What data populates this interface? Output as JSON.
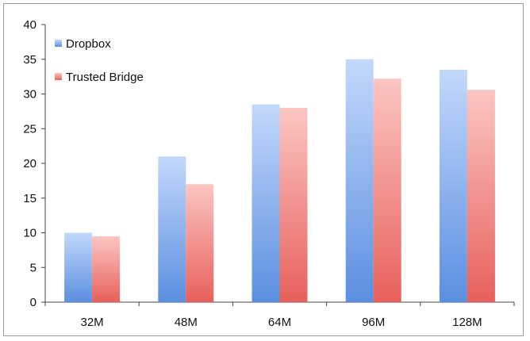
{
  "chart_data": {
    "type": "bar",
    "categories": [
      "32M",
      "48M",
      "64M",
      "96M",
      "128M"
    ],
    "series": [
      {
        "name": "Dropbox",
        "values": [
          10,
          21,
          28.5,
          35,
          33.5
        ],
        "color": "#7ea9ea"
      },
      {
        "name": "Trusted Bridge",
        "values": [
          9.5,
          17,
          28,
          32.2,
          30.6
        ],
        "color": "#ef7f7b"
      }
    ],
    "yticks": [
      "0",
      "5",
      "10",
      "15",
      "20",
      "25",
      "30",
      "35",
      "40"
    ],
    "ylim": [
      0,
      40
    ],
    "grid": false,
    "legend": "top-left",
    "title": "",
    "xlabel": "",
    "ylabel": ""
  }
}
